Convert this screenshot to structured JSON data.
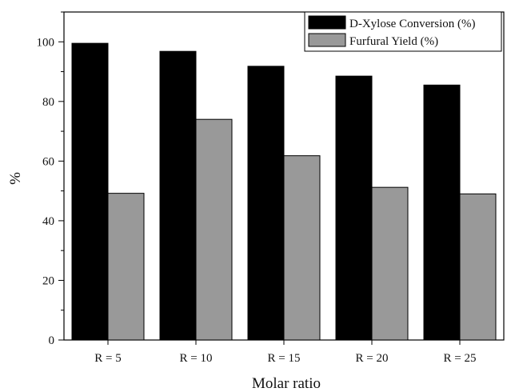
{
  "chart_data": {
    "type": "bar",
    "title": "",
    "xlabel": "Molar ratio",
    "ylabel": "%",
    "categories": [
      "R = 5",
      "R = 10",
      "R = 15",
      "R = 20",
      "R = 25"
    ],
    "series": [
      {
        "name": "D-Xylose Conversion (%)",
        "color": "#000000",
        "values": [
          99.5,
          96.8,
          91.8,
          88.5,
          85.5
        ]
      },
      {
        "name": "Furfural Yield (%)",
        "color": "#999999",
        "values": [
          49.2,
          74.0,
          61.8,
          51.2,
          49.0
        ]
      }
    ],
    "ylim": [
      0,
      110
    ],
    "yticks": [
      0,
      20,
      40,
      60,
      80,
      100
    ],
    "y_minor_step": 10,
    "grid": false,
    "legend_position": "top-right"
  }
}
